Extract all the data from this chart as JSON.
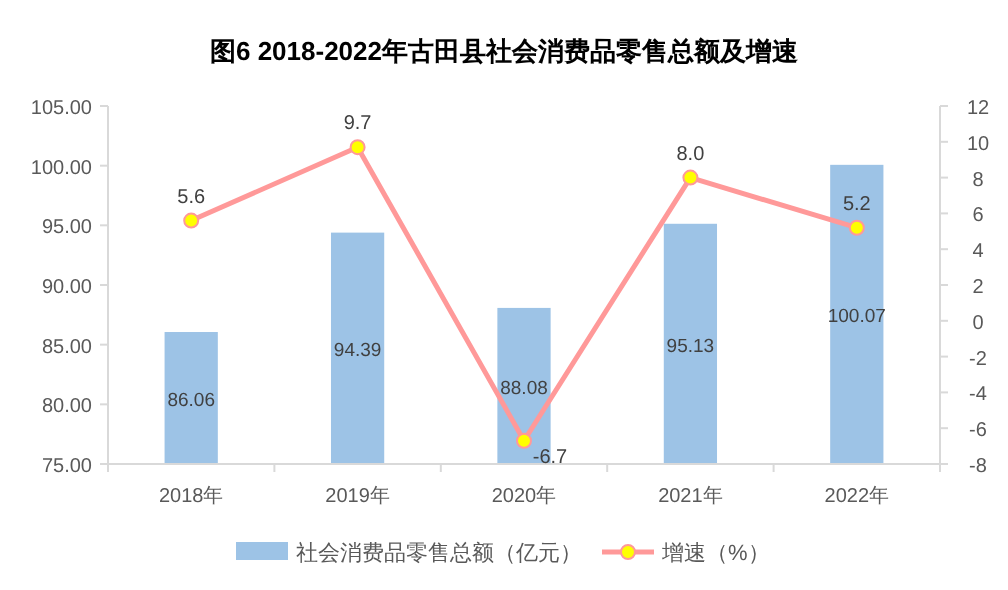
{
  "chart_data": {
    "type": "bar",
    "title": "图6 2018-2022年古田县社会消费品零售总额及增速",
    "categories": [
      "2018年",
      "2019年",
      "2020年",
      "2021年",
      "2022年"
    ],
    "series": [
      {
        "name": "社会消费品零售总额（亿元）",
        "color": "#9dc3e6",
        "values": [
          86.06,
          94.39,
          88.08,
          95.13,
          100.07
        ]
      },
      {
        "name": "增速（%）",
        "type": "line",
        "axis": "y2",
        "color": "#ff9999",
        "marker": "circle",
        "values": [
          5.6,
          9.7,
          -6.7,
          8.0,
          5.2
        ],
        "value_labels": [
          "5.6",
          "9.7",
          "-6.7",
          "8.0",
          "5.2"
        ]
      }
    ],
    "ylim": [
      75,
      105
    ],
    "yticks": [
      {
        "value": 75,
        "label": "75.00"
      },
      {
        "value": 80,
        "label": "80.00"
      },
      {
        "value": 85,
        "label": "85.00"
      },
      {
        "value": 90,
        "label": "90.00"
      },
      {
        "value": 95,
        "label": "95.00"
      },
      {
        "value": 100,
        "label": "100.00"
      },
      {
        "value": 105,
        "label": "105.00"
      }
    ],
    "y2lim": [
      -8,
      12
    ],
    "y2ticks": [
      -8,
      -6,
      -4,
      -2,
      0,
      2,
      4,
      6,
      8,
      10,
      12
    ],
    "data_labels": true,
    "grid": false,
    "legend": "bottom"
  }
}
